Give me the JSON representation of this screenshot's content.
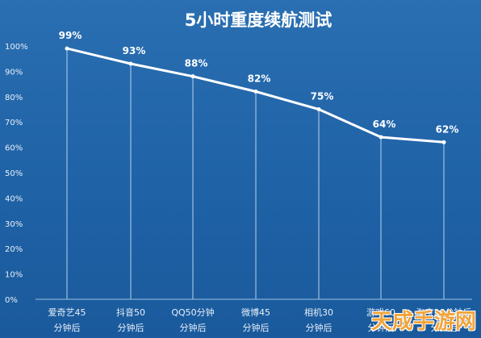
{
  "chart_data": {
    "type": "line",
    "title": "5小时重度续航测试",
    "categories": [
      "爱奇艺45分钟后",
      "抖音50分钟后",
      "QQ50分钟",
      "微博45分钟后",
      "相机30分钟后",
      "游戏60分钟后",
      "淘宝20分钟后"
    ],
    "category_lines": [
      [
        "爱奇艺45",
        "分钟后"
      ],
      [
        "抖音50",
        "分钟后"
      ],
      [
        "QQ50分钟",
        "分钟后"
      ],
      [
        "微博45",
        "分钟后"
      ],
      [
        "相机30",
        "分钟后"
      ],
      [
        "游戏60",
        "分钟后"
      ],
      [
        "淘宝20分钟后",
        "分钟后"
      ]
    ],
    "values": [
      99,
      93,
      88,
      82,
      75,
      64,
      62
    ],
    "data_labels": [
      "99%",
      "93%",
      "88%",
      "82%",
      "75%",
      "64%",
      "62%"
    ],
    "yticks": [
      "0%",
      "10%",
      "20%",
      "30%",
      "40%",
      "50%",
      "60%",
      "70%",
      "80%",
      "90%",
      "100%"
    ],
    "ylim": [
      0,
      100
    ],
    "grid": false,
    "colors": {
      "line": "#ffffff",
      "background": "#2166aa"
    }
  },
  "watermark": "天成手游网"
}
